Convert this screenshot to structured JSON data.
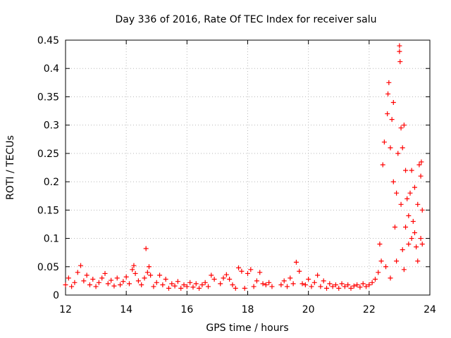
{
  "chart_data": {
    "type": "scatter",
    "title": "Day 336 of 2016, Rate Of TEC Index for receiver salu",
    "xlabel": "GPS time / hours",
    "ylabel": "ROTI / TECUs",
    "xlim": [
      12,
      24
    ],
    "ylim": [
      0,
      0.45
    ],
    "x_ticks": [
      "12",
      "14",
      "16",
      "18",
      "20",
      "22",
      "24"
    ],
    "y_ticks": [
      "0",
      "0.05",
      "0.1",
      "0.15",
      "0.2",
      "0.25",
      "0.3",
      "0.35",
      "0.4",
      "0.45"
    ],
    "grid": true,
    "marker": "plus",
    "marker_color": "#ff0000",
    "series": [
      {
        "name": "ROTI",
        "points": [
          [
            12.0,
            0.018
          ],
          [
            12.1,
            0.03
          ],
          [
            12.2,
            0.015
          ],
          [
            12.3,
            0.022
          ],
          [
            12.4,
            0.04
          ],
          [
            12.5,
            0.052
          ],
          [
            12.6,
            0.025
          ],
          [
            12.7,
            0.035
          ],
          [
            12.8,
            0.018
          ],
          [
            12.9,
            0.028
          ],
          [
            13.0,
            0.015
          ],
          [
            13.1,
            0.022
          ],
          [
            13.2,
            0.03
          ],
          [
            13.3,
            0.038
          ],
          [
            13.4,
            0.02
          ],
          [
            13.5,
            0.026
          ],
          [
            13.6,
            0.016
          ],
          [
            13.7,
            0.03
          ],
          [
            13.8,
            0.018
          ],
          [
            13.9,
            0.024
          ],
          [
            14.0,
            0.032
          ],
          [
            14.1,
            0.02
          ],
          [
            14.2,
            0.045
          ],
          [
            14.25,
            0.052
          ],
          [
            14.3,
            0.038
          ],
          [
            14.4,
            0.025
          ],
          [
            14.5,
            0.018
          ],
          [
            14.6,
            0.03
          ],
          [
            14.65,
            0.082
          ],
          [
            14.7,
            0.04
          ],
          [
            14.75,
            0.05
          ],
          [
            14.8,
            0.035
          ],
          [
            14.9,
            0.015
          ],
          [
            15.0,
            0.022
          ],
          [
            15.1,
            0.035
          ],
          [
            15.2,
            0.018
          ],
          [
            15.3,
            0.028
          ],
          [
            15.4,
            0.012
          ],
          [
            15.5,
            0.02
          ],
          [
            15.6,
            0.016
          ],
          [
            15.7,
            0.024
          ],
          [
            15.8,
            0.012
          ],
          [
            15.9,
            0.018
          ],
          [
            16.0,
            0.015
          ],
          [
            16.1,
            0.022
          ],
          [
            16.2,
            0.014
          ],
          [
            16.3,
            0.02
          ],
          [
            16.4,
            0.012
          ],
          [
            16.5,
            0.018
          ],
          [
            16.6,
            0.022
          ],
          [
            16.7,
            0.015
          ],
          [
            16.8,
            0.035
          ],
          [
            16.9,
            0.028
          ],
          [
            17.1,
            0.02
          ],
          [
            17.2,
            0.03
          ],
          [
            17.3,
            0.036
          ],
          [
            17.4,
            0.028
          ],
          [
            17.5,
            0.018
          ],
          [
            17.6,
            0.012
          ],
          [
            17.7,
            0.048
          ],
          [
            17.8,
            0.042
          ],
          [
            17.9,
            0.012
          ],
          [
            18.0,
            0.038
          ],
          [
            18.1,
            0.045
          ],
          [
            18.2,
            0.015
          ],
          [
            18.3,
            0.025
          ],
          [
            18.4,
            0.04
          ],
          [
            18.5,
            0.02
          ],
          [
            18.6,
            0.018
          ],
          [
            18.7,
            0.022
          ],
          [
            18.8,
            0.015
          ],
          [
            19.1,
            0.018
          ],
          [
            19.2,
            0.025
          ],
          [
            19.3,
            0.015
          ],
          [
            19.4,
            0.03
          ],
          [
            19.5,
            0.02
          ],
          [
            19.6,
            0.058
          ],
          [
            19.7,
            0.042
          ],
          [
            19.8,
            0.02
          ],
          [
            19.9,
            0.018
          ],
          [
            20.0,
            0.028
          ],
          [
            20.1,
            0.015
          ],
          [
            20.2,
            0.022
          ],
          [
            20.3,
            0.035
          ],
          [
            20.4,
            0.015
          ],
          [
            20.5,
            0.025
          ],
          [
            20.6,
            0.012
          ],
          [
            20.7,
            0.02
          ],
          [
            20.8,
            0.015
          ],
          [
            20.9,
            0.018
          ],
          [
            21.0,
            0.012
          ],
          [
            21.1,
            0.02
          ],
          [
            21.2,
            0.015
          ],
          [
            21.3,
            0.018
          ],
          [
            21.4,
            0.012
          ],
          [
            21.5,
            0.016
          ],
          [
            21.6,
            0.018
          ],
          [
            21.7,
            0.014
          ],
          [
            21.8,
            0.02
          ],
          [
            21.9,
            0.015
          ],
          [
            22.0,
            0.018
          ],
          [
            22.1,
            0.022
          ],
          [
            22.2,
            0.028
          ],
          [
            22.3,
            0.04
          ],
          [
            22.35,
            0.09
          ],
          [
            22.4,
            0.06
          ],
          [
            22.45,
            0.23
          ],
          [
            22.5,
            0.27
          ],
          [
            22.55,
            0.05
          ],
          [
            22.6,
            0.32
          ],
          [
            22.62,
            0.355
          ],
          [
            22.65,
            0.375
          ],
          [
            22.7,
            0.26
          ],
          [
            22.7,
            0.03
          ],
          [
            22.75,
            0.31
          ],
          [
            22.8,
            0.34
          ],
          [
            22.8,
            0.2
          ],
          [
            22.85,
            0.12
          ],
          [
            22.9,
            0.18
          ],
          [
            22.9,
            0.06
          ],
          [
            22.95,
            0.25
          ],
          [
            23.0,
            0.44
          ],
          [
            23.0,
            0.43
          ],
          [
            23.02,
            0.412
          ],
          [
            23.05,
            0.295
          ],
          [
            23.05,
            0.16
          ],
          [
            23.1,
            0.26
          ],
          [
            23.1,
            0.08
          ],
          [
            23.15,
            0.3
          ],
          [
            23.15,
            0.045
          ],
          [
            23.2,
            0.22
          ],
          [
            23.2,
            0.12
          ],
          [
            23.25,
            0.17
          ],
          [
            23.3,
            0.09
          ],
          [
            23.3,
            0.14
          ],
          [
            23.35,
            0.18
          ],
          [
            23.4,
            0.22
          ],
          [
            23.4,
            0.1
          ],
          [
            23.45,
            0.13
          ],
          [
            23.5,
            0.11
          ],
          [
            23.5,
            0.19
          ],
          [
            23.55,
            0.085
          ],
          [
            23.6,
            0.16
          ],
          [
            23.6,
            0.06
          ],
          [
            23.65,
            0.23
          ],
          [
            23.7,
            0.21
          ],
          [
            23.7,
            0.1
          ],
          [
            23.72,
            0.235
          ],
          [
            23.75,
            0.15
          ],
          [
            23.75,
            0.09
          ]
        ]
      }
    ]
  }
}
